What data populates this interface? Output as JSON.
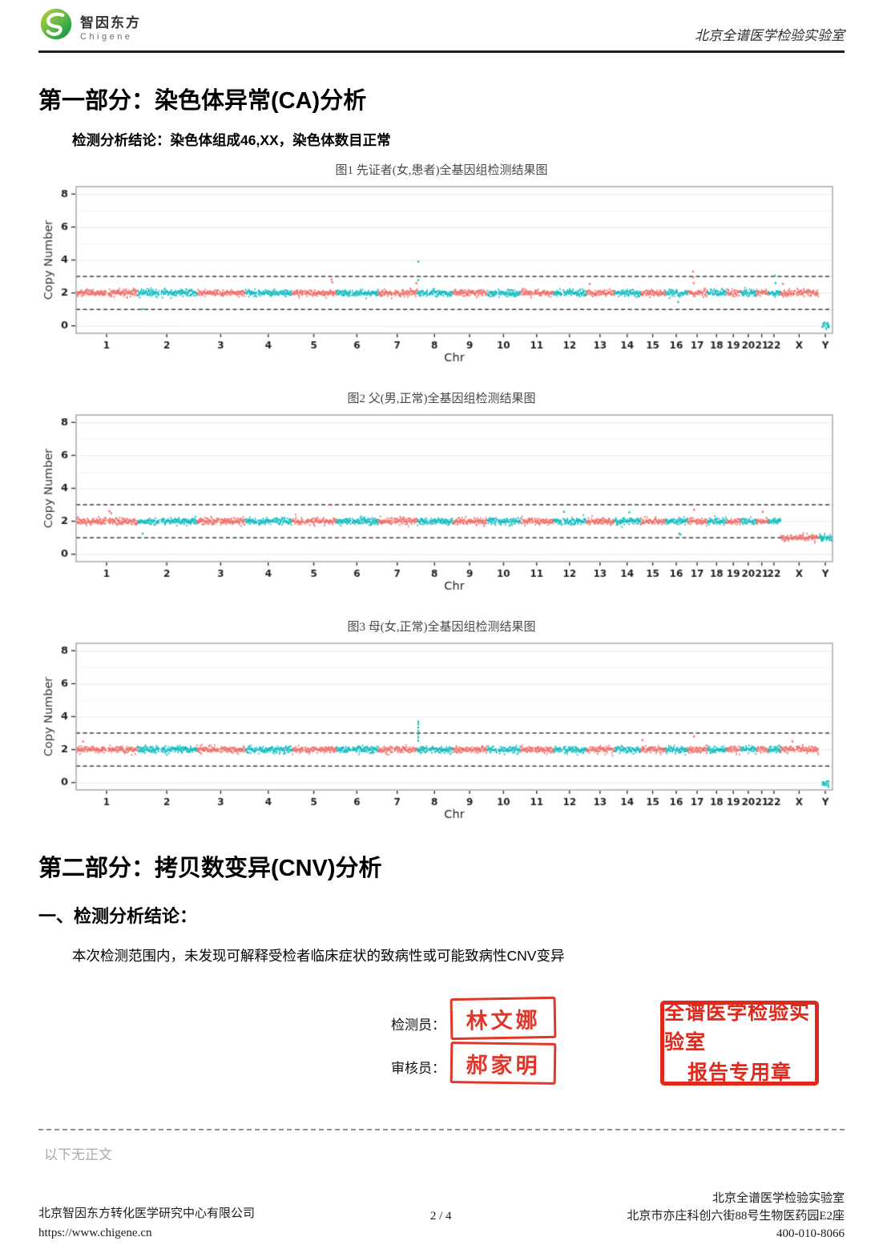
{
  "header": {
    "logo_cn": "智因东方",
    "logo_en": "Chigene",
    "lab_name": "北京全谱医学检验实验室"
  },
  "section1": {
    "title": "第一部分：染色体异常(CA)分析",
    "conclusion": "检测分析结论：染色体组成46,XX，染色体数目正常"
  },
  "section2": {
    "title": "第二部分：拷贝数变异(CNV)分析",
    "subtitle": "一、检测分析结论：",
    "body": "本次检测范围内，未发现可解释受检者临床症状的致病性或可能致病性CNV变异"
  },
  "signoff": {
    "tester_label": "检测员：",
    "tester_stamp": "林文娜",
    "reviewer_label": "审核员：",
    "reviewer_stamp": "郝家明",
    "lab_stamp_line1": "全谱医学检验实验室",
    "lab_stamp_line2": "报告专用章",
    "stamp_color": "#e0372b"
  },
  "end_note": "以下无正文",
  "footer": {
    "company": "北京智因东方转化医学研究中心有限公司",
    "website": "https://www.chigene.cn",
    "page": "2 / 4",
    "lab": "北京全谱医学检验实验室",
    "address": "北京市亦庄科创六街88号生物医药园E2座",
    "phone": "400-010-8066"
  },
  "chromosome_axis": {
    "categories": [
      "1",
      "2",
      "3",
      "4",
      "5",
      "6",
      "7",
      "8",
      "9",
      "10",
      "11",
      "12",
      "13",
      "14",
      "15",
      "16",
      "17",
      "18",
      "19",
      "20",
      "21",
      "22",
      "X",
      "Y"
    ],
    "lengths_mb": [
      249,
      243,
      198,
      191,
      181,
      171,
      159,
      146,
      141,
      136,
      135,
      134,
      115,
      107,
      102,
      90,
      81,
      78,
      59,
      63,
      48,
      51,
      155,
      59
    ],
    "centromere_frac": [
      0.5,
      0.38,
      0.46,
      0.26,
      0.27,
      0.35,
      0.38,
      0.31,
      0.35,
      0.3,
      0.4,
      0.27,
      0.16,
      0.16,
      0.17,
      0.41,
      0.3,
      0.22,
      0.45,
      0.44,
      0.27,
      0.29,
      0.39,
      0.45
    ],
    "color_odd": "#F0716C",
    "color_even": "#16BDC0"
  },
  "chart_data": [
    {
      "type": "scatter",
      "title": "图1 先证者(女,患者)全基因组检测结果图",
      "xlabel": "Chr",
      "ylabel": "Copy Number",
      "yticks": [
        0,
        2,
        4,
        6,
        8
      ],
      "ylim": [
        -0.45,
        8.45
      ],
      "threshold_lines": [
        1,
        3
      ],
      "grid": true,
      "levels": {
        "default": 2,
        "X": 2,
        "Y": 0
      },
      "coverage": {
        "Y": [
          0.25,
          0.72
        ]
      },
      "outliers": [
        [
          "2",
          0.08,
          1.02
        ],
        [
          "5",
          0.88,
          2.82
        ],
        [
          "5",
          0.9,
          2.65
        ],
        [
          "8",
          0.02,
          3.9
        ],
        [
          "8",
          0.02,
          2.78
        ],
        [
          "7",
          0.97,
          2.6
        ],
        [
          "13",
          0.1,
          2.55
        ],
        [
          "16",
          0.55,
          1.45
        ],
        [
          "17",
          0.25,
          3.3
        ],
        [
          "17",
          0.26,
          2.95
        ],
        [
          "17",
          0.28,
          2.6
        ],
        [
          "22",
          0.5,
          3.05
        ],
        [
          "22",
          0.56,
          2.6
        ],
        [
          "X",
          0.05,
          2.55
        ]
      ]
    },
    {
      "type": "scatter",
      "title": "图2 父(男,正常)全基因组检测结果图",
      "xlabel": "Chr",
      "ylabel": "Copy Number",
      "yticks": [
        0,
        2,
        4,
        6,
        8
      ],
      "ylim": [
        -0.45,
        8.45
      ],
      "threshold_lines": [
        1,
        3
      ],
      "grid": true,
      "levels": {
        "default": 2,
        "X": 1,
        "Y": 1
      },
      "coverage": {
        "X": [
          0.01,
          0.99
        ],
        "Y": [
          0.04,
          0.92
        ]
      },
      "outliers": [
        [
          "1",
          0.53,
          2.62
        ],
        [
          "1",
          0.56,
          2.5
        ],
        [
          "2",
          0.08,
          1.25
        ],
        [
          "5",
          0.88,
          3.0
        ],
        [
          "12",
          0.3,
          2.58
        ],
        [
          "14",
          0.55,
          2.55
        ],
        [
          "16",
          0.6,
          1.25
        ],
        [
          "16",
          0.66,
          1.2
        ],
        [
          "17",
          0.3,
          2.7
        ],
        [
          "21",
          0.5,
          2.58
        ]
      ]
    },
    {
      "type": "scatter",
      "title": "图3 母(女,正常)全基因组检测结果图",
      "xlabel": "Chr",
      "ylabel": "Copy Number",
      "yticks": [
        0,
        2,
        4,
        6,
        8
      ],
      "ylim": [
        -0.45,
        8.45
      ],
      "threshold_lines": [
        1,
        3
      ],
      "grid": true,
      "levels": {
        "default": 2,
        "X": 2,
        "Y": 0
      },
      "coverage": {
        "Y": [
          0.25,
          0.72
        ]
      },
      "outliers": [
        [
          "8",
          0.018,
          2.55
        ],
        [
          "8",
          0.022,
          2.75
        ],
        [
          "8",
          0.018,
          2.95
        ],
        [
          "8",
          0.022,
          3.15
        ],
        [
          "8",
          0.018,
          3.35
        ],
        [
          "8",
          0.022,
          3.55
        ],
        [
          "8",
          0.02,
          3.7
        ],
        [
          "1",
          0.1,
          2.5
        ],
        [
          "15",
          0.05,
          2.58
        ],
        [
          "17",
          0.3,
          2.8
        ],
        [
          "X",
          0.3,
          2.5
        ]
      ]
    }
  ]
}
